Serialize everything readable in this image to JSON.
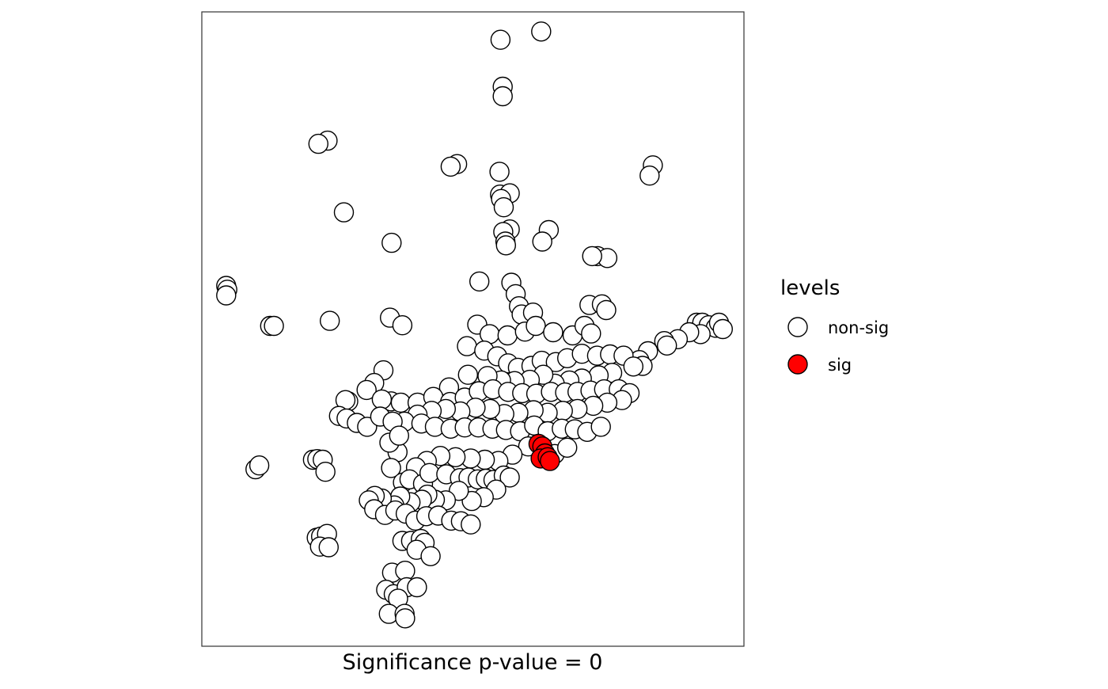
{
  "chart_data": {
    "type": "scatter",
    "title": "",
    "xlabel": "Significance p-value = 0",
    "ylabel": "",
    "xlim": [
      0,
      100
    ],
    "ylim": [
      0,
      100
    ],
    "grid": false,
    "axes_ticks_visible": false,
    "legend": {
      "title": "levels",
      "placement": "right",
      "entries": [
        {
          "label": "non-sig",
          "color": "#ffffff"
        },
        {
          "label": "sig",
          "color": "#ff0000"
        }
      ]
    },
    "series": [
      {
        "name": "non-sig",
        "color": "#ffffff",
        "points": [
          [
            55.1,
            95.6
          ],
          [
            62.6,
            96.9
          ],
          [
            55.5,
            88.2
          ],
          [
            55.5,
            86.7
          ],
          [
            23.2,
            79.7
          ],
          [
            21.5,
            79.2
          ],
          [
            47.1,
            76.0
          ],
          [
            45.9,
            75.6
          ],
          [
            54.9,
            74.8
          ],
          [
            55.0,
            71.2
          ],
          [
            56.8,
            71.4
          ],
          [
            55.2,
            70.5
          ],
          [
            55.7,
            69.2
          ],
          [
            83.2,
            75.8
          ],
          [
            82.6,
            74.2
          ],
          [
            26.2,
            68.4
          ],
          [
            35.0,
            63.6
          ],
          [
            56.8,
            65.7
          ],
          [
            55.6,
            65.3
          ],
          [
            56.0,
            63.8
          ],
          [
            56.1,
            63.2
          ],
          [
            64.0,
            65.6
          ],
          [
            62.8,
            63.8
          ],
          [
            73.0,
            61.5
          ],
          [
            74.8,
            61.2
          ],
          [
            72.0,
            61.5
          ],
          [
            51.2,
            57.5
          ],
          [
            57.1,
            57.3
          ],
          [
            57.9,
            55.5
          ],
          [
            4.5,
            56.8
          ],
          [
            4.7,
            56.2
          ],
          [
            4.5,
            55.3
          ],
          [
            12.6,
            50.5
          ],
          [
            13.3,
            50.5
          ],
          [
            23.6,
            51.3
          ],
          [
            34.7,
            51.8
          ],
          [
            37.0,
            50.6
          ],
          [
            58.5,
            53.6
          ],
          [
            59.0,
            52.3
          ],
          [
            61.1,
            52.6
          ],
          [
            71.5,
            53.8
          ],
          [
            73.8,
            53.9
          ],
          [
            74.6,
            53.0
          ],
          [
            91.3,
            51.0
          ],
          [
            92.3,
            51.0
          ],
          [
            93.5,
            50.6
          ],
          [
            94.8,
            50.2
          ],
          [
            95.4,
            51.0
          ],
          [
            96.1,
            50.0
          ],
          [
            92.0,
            49.2
          ],
          [
            89.9,
            49.5
          ],
          [
            87.8,
            48.4
          ],
          [
            85.3,
            48.1
          ],
          [
            85.8,
            47.4
          ],
          [
            82.3,
            46.5
          ],
          [
            80.7,
            45.1
          ],
          [
            81.3,
            44.2
          ],
          [
            50.8,
            50.7
          ],
          [
            53.1,
            49.2
          ],
          [
            56.4,
            49.0
          ],
          [
            59.6,
            49.6
          ],
          [
            61.6,
            50.5
          ],
          [
            64.8,
            49.5
          ],
          [
            68.4,
            49.0
          ],
          [
            70.6,
            50.5
          ],
          [
            71.8,
            49.3
          ],
          [
            48.9,
            47.3
          ],
          [
            52.1,
            46.6
          ],
          [
            54.5,
            45.7
          ],
          [
            56.5,
            44.6
          ],
          [
            58.3,
            43.9
          ],
          [
            60.8,
            44.2
          ],
          [
            62.7,
            45.0
          ],
          [
            65.3,
            44.8
          ],
          [
            67.4,
            45.4
          ],
          [
            70.1,
            46.1
          ],
          [
            72.9,
            45.8
          ],
          [
            75.3,
            46.0
          ],
          [
            77.8,
            45.8
          ],
          [
            79.6,
            44.1
          ],
          [
            75.7,
            43.1
          ],
          [
            73.2,
            42.7
          ],
          [
            70.1,
            42.2
          ],
          [
            67.8,
            41.9
          ],
          [
            65.1,
            41.4
          ],
          [
            63.0,
            42.8
          ],
          [
            60.5,
            42.0
          ],
          [
            57.7,
            41.8
          ],
          [
            55.2,
            41.9
          ],
          [
            52.7,
            42.6
          ],
          [
            49.1,
            42.8
          ],
          [
            45.6,
            40.8
          ],
          [
            33.5,
            43.5
          ],
          [
            31.8,
            41.5
          ],
          [
            30.4,
            40.4
          ],
          [
            34.9,
            38.6
          ],
          [
            33.2,
            38.9
          ],
          [
            36.7,
            38.4
          ],
          [
            39.8,
            38.4
          ],
          [
            42.7,
            39.3
          ],
          [
            45.8,
            38.5
          ],
          [
            48.5,
            39.2
          ],
          [
            51.1,
            40.2
          ],
          [
            53.7,
            40.5
          ],
          [
            56.5,
            40.1
          ],
          [
            59.1,
            39.9
          ],
          [
            61.7,
            39.8
          ],
          [
            64.4,
            40.1
          ],
          [
            67.0,
            40.0
          ],
          [
            69.3,
            40.1
          ],
          [
            71.7,
            40.3
          ],
          [
            74.2,
            40.5
          ],
          [
            76.9,
            40.5
          ],
          [
            78.9,
            39.9
          ],
          [
            77.5,
            38.8
          ],
          [
            74.8,
            38.4
          ],
          [
            72.2,
            37.9
          ],
          [
            69.3,
            37.4
          ],
          [
            66.6,
            37.1
          ],
          [
            63.8,
            36.8
          ],
          [
            61.2,
            37.2
          ],
          [
            58.4,
            36.8
          ],
          [
            55.8,
            36.6
          ],
          [
            53.2,
            37.4
          ],
          [
            50.5,
            37.6
          ],
          [
            47.7,
            37.0
          ],
          [
            45.0,
            37.4
          ],
          [
            42.4,
            37.1
          ],
          [
            39.8,
            36.5
          ],
          [
            37.4,
            35.4
          ],
          [
            27.0,
            38.6
          ],
          [
            26.5,
            38.8
          ],
          [
            25.3,
            36.3
          ],
          [
            26.7,
            35.9
          ],
          [
            28.6,
            35.2
          ],
          [
            30.5,
            34.6
          ],
          [
            32.9,
            36.2
          ],
          [
            35.2,
            35.4
          ],
          [
            40.5,
            35.1
          ],
          [
            43.0,
            34.6
          ],
          [
            45.9,
            34.3
          ],
          [
            48.5,
            34.5
          ],
          [
            51.0,
            34.5
          ],
          [
            53.6,
            34.3
          ],
          [
            56.1,
            34.1
          ],
          [
            58.7,
            33.9
          ],
          [
            61.3,
            34.8
          ],
          [
            63.8,
            33.9
          ],
          [
            66.4,
            34.3
          ],
          [
            68.8,
            34.2
          ],
          [
            71.1,
            33.8
          ],
          [
            73.6,
            34.6
          ],
          [
            60.2,
            31.5
          ],
          [
            62.6,
            31.6
          ],
          [
            65.1,
            30.3
          ],
          [
            67.4,
            31.3
          ],
          [
            57.3,
            30.2
          ],
          [
            54.7,
            29.2
          ],
          [
            52.2,
            29.4
          ],
          [
            49.6,
            29.6
          ],
          [
            46.8,
            29.8
          ],
          [
            44.0,
            30.0
          ],
          [
            41.5,
            29.2
          ],
          [
            39.5,
            28.2
          ],
          [
            36.1,
            30.6
          ],
          [
            34.6,
            32.1
          ],
          [
            36.4,
            33.2
          ],
          [
            34.9,
            28.1
          ],
          [
            37.1,
            25.8
          ],
          [
            38.3,
            26.3
          ],
          [
            40.8,
            25.6
          ],
          [
            42.0,
            27.3
          ],
          [
            45.1,
            27.1
          ],
          [
            47.6,
            26.5
          ],
          [
            49.2,
            26.6
          ],
          [
            50.9,
            26.3
          ],
          [
            52.4,
            26.4
          ],
          [
            53.8,
            26.2
          ],
          [
            55.7,
            26.9
          ],
          [
            56.8,
            26.6
          ],
          [
            54.3,
            24.7
          ],
          [
            52.0,
            23.5
          ],
          [
            49.8,
            22.9
          ],
          [
            47.4,
            24.5
          ],
          [
            45.0,
            23.0
          ],
          [
            43.0,
            23.1
          ],
          [
            41.6,
            23.9
          ],
          [
            40.6,
            23.1
          ],
          [
            38.5,
            22.7
          ],
          [
            36.6,
            23.6
          ],
          [
            35.5,
            22.2
          ],
          [
            33.2,
            23.3
          ],
          [
            31.9,
            23.7
          ],
          [
            30.8,
            23.0
          ],
          [
            31.8,
            21.6
          ],
          [
            33.8,
            20.7
          ],
          [
            35.7,
            21.4
          ],
          [
            37.6,
            20.9
          ],
          [
            39.4,
            19.8
          ],
          [
            41.4,
            20.5
          ],
          [
            43.6,
            20.6
          ],
          [
            46.0,
            19.8
          ],
          [
            47.8,
            19.7
          ],
          [
            49.6,
            19.2
          ],
          [
            20.5,
            29.4
          ],
          [
            21.3,
            29.5
          ],
          [
            22.3,
            29.4
          ],
          [
            22.8,
            27.5
          ],
          [
            9.9,
            27.9
          ],
          [
            10.6,
            28.5
          ],
          [
            21.2,
            17.1
          ],
          [
            22.0,
            17.3
          ],
          [
            23.1,
            17.7
          ],
          [
            21.8,
            15.7
          ],
          [
            23.4,
            15.6
          ],
          [
            37.0,
            16.6
          ],
          [
            38.6,
            16.6
          ],
          [
            40.4,
            16.9
          ],
          [
            41.1,
            16.3
          ],
          [
            39.6,
            15.2
          ],
          [
            42.2,
            14.2
          ],
          [
            35.1,
            11.6
          ],
          [
            37.5,
            11.9
          ],
          [
            34.0,
            8.9
          ],
          [
            35.4,
            8.2
          ],
          [
            37.8,
            9.3
          ],
          [
            39.7,
            9.3
          ],
          [
            36.2,
            7.5
          ],
          [
            34.5,
            5.1
          ],
          [
            37.4,
            5.1
          ],
          [
            37.5,
            4.4
          ]
        ]
      },
      {
        "name": "sig",
        "color": "#ff0000",
        "points": [
          [
            62.1,
            31.9
          ],
          [
            62.8,
            31.5
          ],
          [
            63.3,
            30.4
          ],
          [
            62.5,
            29.6
          ],
          [
            63.8,
            29.8
          ],
          [
            64.2,
            29.2
          ]
        ]
      }
    ]
  }
}
